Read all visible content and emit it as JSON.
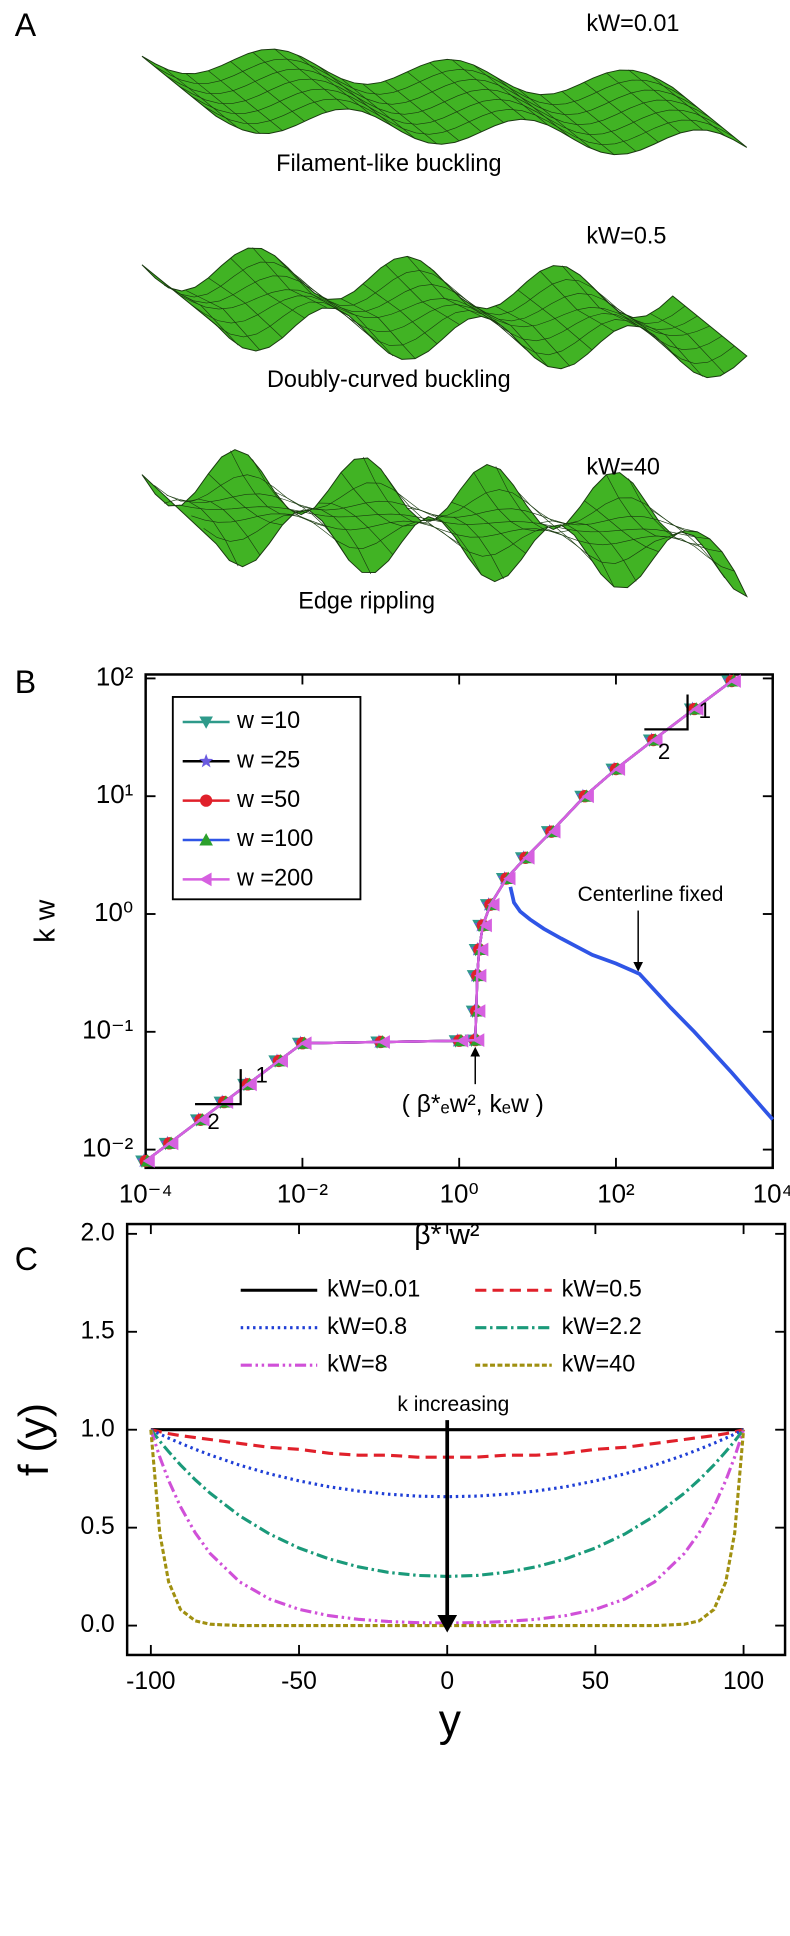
{
  "panel_a": {
    "label": "A",
    "surfaces": [
      {
        "param": "kW=0.01",
        "caption": "Filament-like buckling"
      },
      {
        "param": "kW=0.5",
        "caption": "Doubly-curved buckling"
      },
      {
        "param": "kW=40",
        "caption": "Edge rippling"
      }
    ]
  },
  "chart_data": [
    {
      "type": "line",
      "label": "B",
      "log_x": true,
      "log_y": true,
      "xlabel": "β* w²",
      "ylabel": "k w",
      "xlim": [
        0.0001,
        10000
      ],
      "ylim": [
        0.007,
        108
      ],
      "xticks": [
        {
          "value": 0.0001,
          "label": "10⁻⁴"
        },
        {
          "value": 0.01,
          "label": "10⁻²"
        },
        {
          "value": 1,
          "label": "10⁰"
        },
        {
          "value": 100,
          "label": "10²"
        },
        {
          "value": 10000,
          "label": "10⁴"
        }
      ],
      "yticks": [
        {
          "value": 0.01,
          "label": "10⁻²"
        },
        {
          "value": 0.1,
          "label": "10⁻¹"
        },
        {
          "value": 1,
          "label": "10⁰"
        },
        {
          "value": 10,
          "label": "10¹"
        },
        {
          "value": 100,
          "label": "10²"
        }
      ],
      "legend": "upper left",
      "x": [
        0.0001,
        0.0002,
        0.0005,
        0.001,
        0.002,
        0.005,
        0.01,
        0.1,
        1,
        1.6,
        1.65,
        1.7,
        1.8,
        2,
        2.5,
        4,
        7,
        15,
        40,
        100,
        300,
        1000,
        3000
      ],
      "series": [
        {
          "name": "w =10",
          "color": "#2e9a8a",
          "marker": "triangle-down",
          "marker_color": "#2e9a8a",
          "values": [
            0.008,
            0.0113,
            0.0179,
            0.0253,
            0.0358,
            0.0566,
            0.08,
            0.082,
            0.084,
            0.085,
            0.15,
            0.3,
            0.5,
            0.8,
            1.2,
            2,
            3,
            5,
            10,
            17,
            30,
            55,
            95
          ]
        },
        {
          "name": "w =25",
          "color": "#000000",
          "marker": "star",
          "marker_color": "#6a5ae0",
          "values": [
            0.008,
            0.0113,
            0.0179,
            0.0253,
            0.0358,
            0.0566,
            0.08,
            0.082,
            0.084,
            0.085,
            0.15,
            0.3,
            0.5,
            0.8,
            1.2,
            2,
            3,
            5,
            10,
            17,
            30,
            55,
            95
          ]
        },
        {
          "name": "w =50",
          "color": "#e0202a",
          "marker": "circle",
          "marker_color": "#e0202a",
          "values": [
            0.008,
            0.0113,
            0.0179,
            0.0253,
            0.0358,
            0.0566,
            0.08,
            0.082,
            0.084,
            0.085,
            0.15,
            0.3,
            0.5,
            0.8,
            1.2,
            2,
            3,
            5,
            10,
            17,
            30,
            55,
            95
          ]
        },
        {
          "name": "w =100",
          "color": "#2f55e6",
          "marker": "triangle",
          "marker_color": "#2ca02c",
          "values": [
            0.008,
            0.0113,
            0.0179,
            0.0253,
            0.0358,
            0.0566,
            0.08,
            0.082,
            0.084,
            0.085,
            0.15,
            0.3,
            0.5,
            0.8,
            1.2,
            2,
            3,
            5,
            10,
            17,
            30,
            55,
            95
          ]
        },
        {
          "name": "w =200",
          "color": "#d660e0",
          "marker": "triangle-left",
          "marker_color": "#d660e0",
          "values": [
            0.008,
            0.0113,
            0.0179,
            0.0253,
            0.0358,
            0.0566,
            0.08,
            0.082,
            0.084,
            0.085,
            0.15,
            0.3,
            0.5,
            0.8,
            1.2,
            2,
            3,
            5,
            10,
            17,
            30,
            55,
            95
          ]
        }
      ],
      "annotations": [
        {
          "text": "Centerline fixed",
          "color": "#2f55e6",
          "x": [
            4.5,
            5,
            6,
            8,
            12,
            20,
            50,
            100,
            200,
            500,
            1000,
            3000,
            10000
          ],
          "values": [
            1.7,
            1.25,
            1.05,
            0.9,
            0.75,
            0.62,
            0.45,
            0.38,
            0.31,
            0.16,
            0.1,
            0.045,
            0.018
          ]
        },
        {
          "text": "( β*ₑw², kₑw )"
        },
        {
          "text": "1"
        },
        {
          "text": "2"
        },
        {
          "text": "1"
        },
        {
          "text": "2"
        }
      ]
    },
    {
      "type": "line",
      "label": "C",
      "xlabel": "y",
      "ylabel": "f (y)",
      "xlim": [
        -108,
        114
      ],
      "ylim": [
        -0.15,
        2.05
      ],
      "xticks": [
        -100,
        -50,
        0,
        50,
        100
      ],
      "yticks": [
        {
          "value": 0,
          "label": "0.0"
        },
        {
          "value": 0.5,
          "label": "0.5"
        },
        {
          "value": 1,
          "label": "1.0"
        },
        {
          "value": 1.5,
          "label": "1.5"
        },
        {
          "value": 2,
          "label": "2.0"
        }
      ],
      "legend": "upper center",
      "x": [
        -100,
        -97,
        -94,
        -90,
        -85,
        -80,
        -70,
        -60,
        -50,
        -40,
        -30,
        -20,
        -10,
        0,
        10,
        20,
        30,
        40,
        50,
        60,
        70,
        80,
        85,
        90,
        94,
        97,
        100
      ],
      "series": [
        {
          "name": "kW=0.01",
          "color": "#000000",
          "dash": "none",
          "values": [
            1,
            1,
            1,
            1,
            1,
            1,
            1,
            1,
            1,
            1,
            1,
            1,
            1,
            1,
            1,
            1,
            1,
            1,
            1,
            1,
            1,
            1,
            1,
            1,
            1,
            1,
            1
          ]
        },
        {
          "name": "kW=0.5",
          "color": "#e0202a",
          "dash": "9,5",
          "values": [
            1,
            0.99,
            0.98,
            0.97,
            0.96,
            0.95,
            0.93,
            0.91,
            0.9,
            0.88,
            0.87,
            0.87,
            0.86,
            0.86,
            0.86,
            0.87,
            0.87,
            0.88,
            0.9,
            0.91,
            0.93,
            0.95,
            0.96,
            0.97,
            0.98,
            0.99,
            1
          ]
        },
        {
          "name": "kW=0.8",
          "color": "#1f3fd6",
          "dash": "2,3",
          "values": [
            1,
            0.978,
            0.957,
            0.931,
            0.9,
            0.871,
            0.819,
            0.775,
            0.739,
            0.709,
            0.687,
            0.671,
            0.661,
            0.658,
            0.661,
            0.671,
            0.687,
            0.709,
            0.739,
            0.775,
            0.819,
            0.871,
            0.9,
            0.931,
            0.957,
            0.978,
            1
          ]
        },
        {
          "name": "kW=2.2",
          "color": "#1a9a7a",
          "dash": "9,3,2,3",
          "values": [
            1,
            0.942,
            0.888,
            0.82,
            0.744,
            0.676,
            0.56,
            0.468,
            0.396,
            0.341,
            0.3,
            0.272,
            0.256,
            0.251,
            0.256,
            0.272,
            0.3,
            0.341,
            0.396,
            0.468,
            0.56,
            0.676,
            0.744,
            0.82,
            0.888,
            0.942,
            1
          ]
        },
        {
          "name": "kW=8",
          "color": "#d050d8",
          "dash": "9,3,2,3,2,3",
          "values": [
            1,
            0.861,
            0.741,
            0.607,
            0.473,
            0.368,
            0.223,
            0.136,
            0.083,
            0.051,
            0.032,
            0.021,
            0.015,
            0.013,
            0.015,
            0.021,
            0.032,
            0.051,
            0.083,
            0.136,
            0.223,
            0.368,
            0.473,
            0.607,
            0.741,
            0.861,
            1
          ]
        },
        {
          "name": "kW=40",
          "color": "#a09010",
          "dash": "4,2",
          "values": [
            1,
            0.472,
            0.223,
            0.082,
            0.024,
            0.007,
            0,
            0,
            0,
            0,
            0,
            0,
            0,
            0,
            0,
            0,
            0,
            0,
            0,
            0,
            0,
            0.007,
            0.024,
            0.082,
            0.223,
            0.472,
            1
          ]
        }
      ],
      "annotations": [
        {
          "text": "k increasing"
        }
      ]
    }
  ]
}
